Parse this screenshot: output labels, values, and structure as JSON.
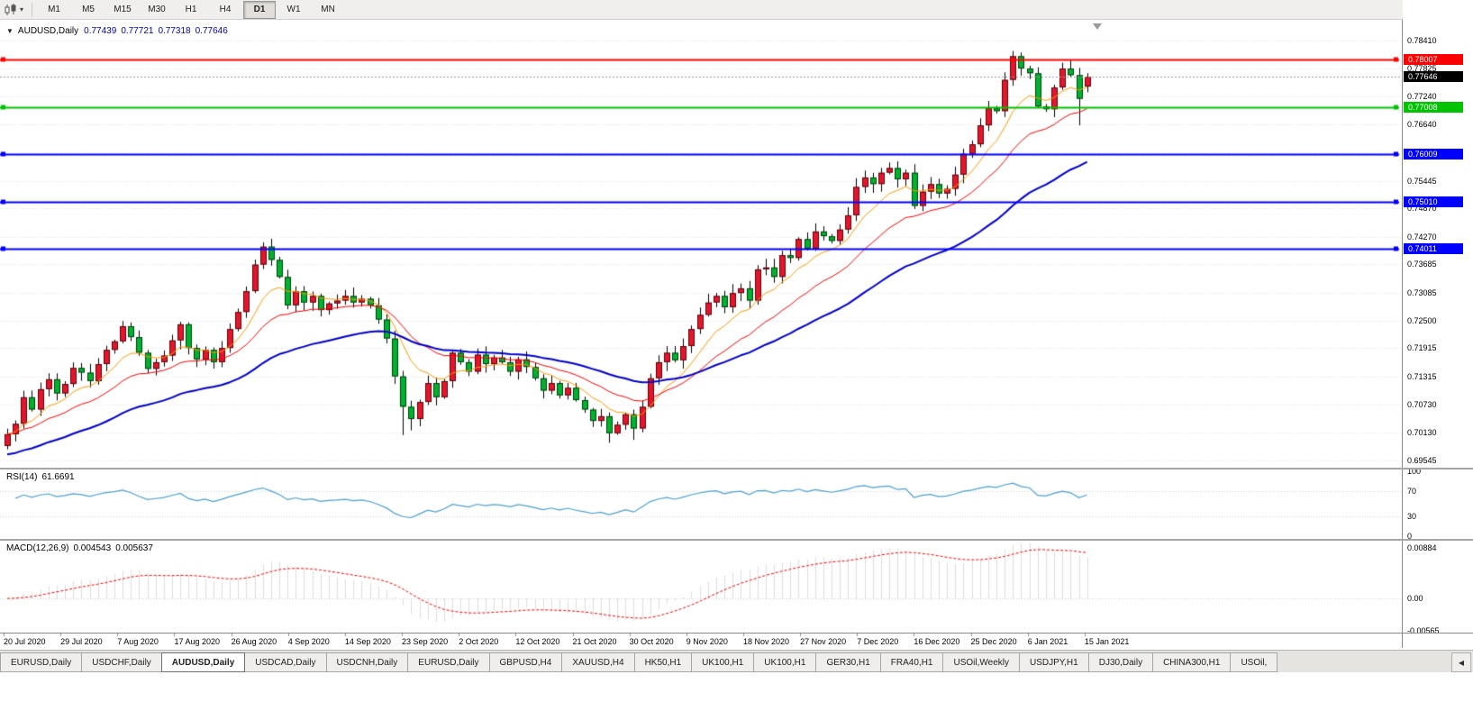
{
  "toolbar": {
    "timeframes": [
      "M1",
      "M5",
      "M15",
      "M30",
      "H1",
      "H4",
      "D1",
      "W1",
      "MN"
    ],
    "active_timeframe": "D1",
    "chart_type_icon": "candlestick-chart-icon",
    "caret_icon": "chevron-down-icon"
  },
  "chart": {
    "header": {
      "symbol": "AUDUSD,Daily",
      "open": "0.77439",
      "high": "0.77721",
      "low": "0.77318",
      "close": "0.77646"
    }
  },
  "chart_data": {
    "type": "candlestick",
    "symbol": "AUDUSD",
    "timeframe": "Daily",
    "start_date": "20 Jul 2020",
    "end_date": "15 Jan 2021",
    "closes": [
      0.701,
      0.7032,
      0.7088,
      0.7062,
      0.7105,
      0.7126,
      0.7096,
      0.7116,
      0.715,
      0.714,
      0.7122,
      0.7158,
      0.7188,
      0.7206,
      0.7238,
      0.7215,
      0.7182,
      0.7148,
      0.7162,
      0.7176,
      0.7208,
      0.7242,
      0.7192,
      0.7168,
      0.7188,
      0.7162,
      0.7192,
      0.7232,
      0.7268,
      0.7312,
      0.7368,
      0.7406,
      0.7378,
      0.7342,
      0.7282,
      0.7312,
      0.7288,
      0.7302,
      0.7272,
      0.7286,
      0.7292,
      0.7302,
      0.7288,
      0.7296,
      0.7282,
      0.7252,
      0.7212,
      0.7132,
      0.7068,
      0.7042,
      0.7078,
      0.7118,
      0.7088,
      0.7122,
      0.7182,
      0.7162,
      0.7142,
      0.7178,
      0.7158,
      0.7172,
      0.7162,
      0.7142,
      0.7168,
      0.7152,
      0.7128,
      0.7102,
      0.7118,
      0.7092,
      0.7108,
      0.7082,
      0.7062,
      0.7038,
      0.7048,
      0.7012,
      0.703,
      0.7052,
      0.7022,
      0.7068,
      0.7128,
      0.7162,
      0.7182,
      0.7166,
      0.7196,
      0.7232,
      0.7262,
      0.7288,
      0.7302,
      0.7278,
      0.7308,
      0.7318,
      0.7292,
      0.7358,
      0.7362,
      0.7342,
      0.7388,
      0.7382,
      0.7422,
      0.7402,
      0.7438,
      0.7428,
      0.7418,
      0.7442,
      0.7472,
      0.7532,
      0.7552,
      0.7538,
      0.7562,
      0.7572,
      0.7548,
      0.7562,
      0.7492,
      0.7522,
      0.7538,
      0.7518,
      0.7528,
      0.7558,
      0.7602,
      0.7622,
      0.7662,
      0.7698,
      0.7692,
      0.7758,
      0.7808,
      0.7782,
      0.7772,
      0.7702,
      0.7696,
      0.7742,
      0.7782,
      0.7768,
      0.7718,
      0.77646
    ],
    "open_first": 0.6985,
    "overrides": {
      "0": {
        "open": 0.6985,
        "low": 0.6978
      },
      "31": {
        "high": 0.7415
      },
      "48": {
        "low": 0.7008
      },
      "49": {
        "low": 0.7018
      },
      "73": {
        "low": 0.6992
      },
      "76": {
        "low": 0.6998
      },
      "122": {
        "high": 0.7819
      },
      "130": {
        "low": 0.7662
      },
      "131": {
        "open": 0.77439,
        "high": 0.77721,
        "low": 0.77318
      }
    },
    "last_candle": {
      "open": 0.77439,
      "high": 0.77721,
      "low": 0.77318,
      "close": 0.77646
    },
    "current_price": 0.77646,
    "price_axis": {
      "max": 0.7841,
      "min": 0.69545,
      "ticks": [
        "0.78410",
        "0.77825",
        "0.77240",
        "0.76640",
        "0.76055",
        "0.75445",
        "0.74870",
        "0.74270",
        "0.73685",
        "0.73085",
        "0.72500",
        "0.71915",
        "0.71315",
        "0.70730",
        "0.70130",
        "0.69545"
      ]
    },
    "hlines": [
      {
        "price": 0.78007,
        "label": "0.78007",
        "color": "#ff0000"
      },
      {
        "price": 0.77008,
        "label": "0.77008",
        "color": "#00c400"
      },
      {
        "price": 0.76009,
        "label": "0.76009",
        "color": "#0000ff"
      },
      {
        "price": 0.7501,
        "label": "0.75010",
        "color": "#0000ff"
      },
      {
        "price": 0.74011,
        "label": "0.74011",
        "color": "#0000ff"
      }
    ],
    "current_tag": {
      "label": "0.77646",
      "color": "#000000"
    },
    "date_labels": [
      "20 Jul 2020",
      "29 Jul 2020",
      "7 Aug 2020",
      "17 Aug 2020",
      "26 Aug 2020",
      "4 Sep 2020",
      "14 Sep 2020",
      "23 Sep 2020",
      "2 Oct 2020",
      "12 Oct 2020",
      "21 Oct 2020",
      "30 Oct 2020",
      "9 Nov 2020",
      "18 Nov 2020",
      "27 Nov 2020",
      "7 Dec 2020",
      "16 Dec 2020",
      "25 Dec 2020",
      "6 Jan 2021",
      "15 Jan 2021"
    ],
    "moving_averages": [
      {
        "period": 8,
        "color": "#ff9900",
        "width": 1,
        "seed_offset": 0
      },
      {
        "period": 18,
        "color": "#ff0000",
        "width": 1,
        "seed_offset": 0
      },
      {
        "period": 40,
        "color": "#0000cc",
        "width": 2,
        "seed_offset": -0.0045
      }
    ],
    "indicators": {
      "rsi": {
        "label": "RSI(14)",
        "value": "61.6691",
        "period": 14,
        "axis": [
          {
            "label": "100",
            "value": 100
          },
          {
            "label": "70",
            "value": 70
          },
          {
            "label": "30",
            "value": 30
          },
          {
            "label": "0",
            "value": 0
          }
        ],
        "levels": [
          70,
          30
        ]
      },
      "macd": {
        "label": "MACD(12,26,9)",
        "value_main": "0.004543",
        "value_signal": "0.005637",
        "fast": 12,
        "slow": 26,
        "signal": 9,
        "axis": [
          {
            "label": "0.00884",
            "value": 0.00884
          },
          {
            "label": "0.00",
            "value": 0
          },
          {
            "label": "-0.00565",
            "value": -0.00565
          }
        ]
      }
    }
  },
  "colors": {
    "bull": "#e8142a",
    "bear": "#00b22d",
    "wick": "#000000",
    "grid": "#e2e2e2",
    "rsi_line": "#4aa0d2",
    "level_dotted": "#cfcfcf",
    "macd_hist": "#bdbdbd",
    "macd_signal": "#ff0000",
    "bid_line": "#9a9a9a"
  },
  "tabs": {
    "items": [
      "EURUSD,Daily",
      "USDCHF,Daily",
      "AUDUSD,Daily",
      "USDCAD,Daily",
      "USDCNH,Daily",
      "EURUSD,Daily",
      "GBPUSD,H4",
      "XAUUSD,H4",
      "HK50,H1",
      "UK100,H1",
      "UK100,H1",
      "GER30,H1",
      "FRA40,H1",
      "USOil,Weekly",
      "USDJPY,H1",
      "DJ30,Daily",
      "CHINA300,H1",
      "USOil,"
    ],
    "selected_index": 2,
    "scroll_left_icon": "◀"
  }
}
